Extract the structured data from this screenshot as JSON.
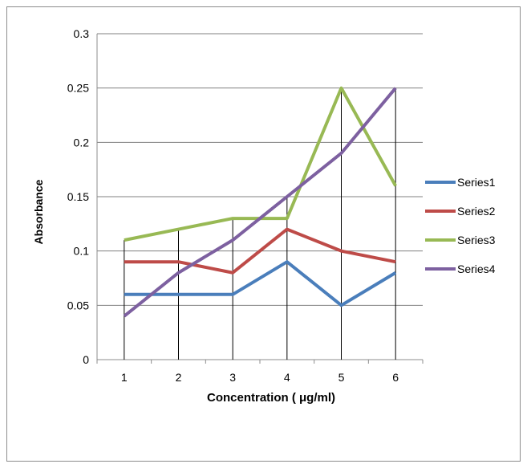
{
  "chart_data": {
    "type": "line",
    "title": "",
    "xlabel": "Concentration ( μg/ml)",
    "ylabel": "Absorbance",
    "categories": [
      "1",
      "2",
      "3",
      "4",
      "5",
      "6"
    ],
    "ylim": [
      0,
      0.3
    ],
    "yticks": [
      0,
      0.05,
      0.1,
      0.15,
      0.2,
      0.25,
      0.3
    ],
    "ytick_labels": [
      "0",
      "0.05",
      "0.1",
      "0.15",
      "0.2",
      "0.25",
      "0.3"
    ],
    "grid": "horizontal",
    "drop_lines": true,
    "legend_position": "right",
    "series": [
      {
        "name": "Series1",
        "color": "#4a7ebb",
        "values": [
          0.06,
          0.06,
          0.06,
          0.09,
          0.05,
          0.08
        ]
      },
      {
        "name": "Series2",
        "color": "#be4b48",
        "values": [
          0.09,
          0.09,
          0.08,
          0.12,
          0.1,
          0.09
        ]
      },
      {
        "name": "Series3",
        "color": "#98b954",
        "values": [
          0.11,
          0.12,
          0.13,
          0.13,
          0.25,
          0.16
        ]
      },
      {
        "name": "Series4",
        "color": "#7d60a0",
        "values": [
          0.04,
          0.08,
          0.11,
          0.15,
          0.19,
          0.25
        ]
      }
    ]
  }
}
